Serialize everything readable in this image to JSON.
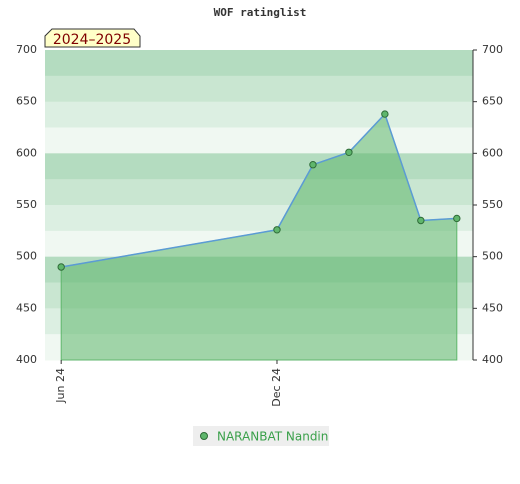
{
  "chart_data": {
    "type": "area",
    "title": "WOF ratinglist",
    "subtitle": "2024–2025",
    "series": [
      {
        "name": "NARANBAT Nandin",
        "color": "#5fb66c",
        "x": [
          0,
          6,
          7,
          8,
          9,
          10,
          11
        ],
        "values": [
          490,
          526,
          589,
          601,
          638,
          535,
          537
        ]
      }
    ],
    "xlim": [
      -0.45,
      11.45
    ],
    "xticks": [
      {
        "value": 0,
        "label": "Jun 24"
      },
      {
        "value": 6,
        "label": "Dec 24"
      }
    ],
    "ylim": [
      400,
      700
    ],
    "yticks": [
      400,
      450,
      500,
      550,
      600,
      650,
      700
    ]
  }
}
